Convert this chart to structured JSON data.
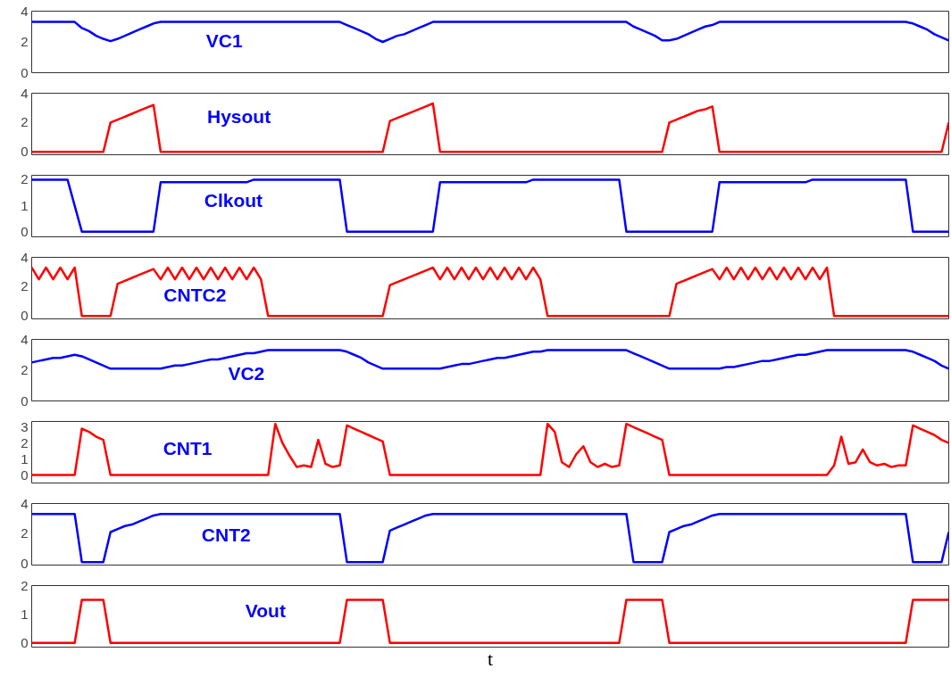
{
  "chart_data": [
    {
      "type": "line",
      "title": "VC1",
      "categories": [
        null,
        null,
        null,
        null,
        null,
        null,
        null,
        null,
        null,
        null,
        null,
        null,
        null,
        null,
        null,
        null,
        null,
        null,
        null,
        null,
        null,
        null,
        null,
        null,
        null,
        null,
        null,
        null,
        null,
        null,
        null,
        null,
        null,
        null,
        null,
        null,
        null,
        null,
        null,
        null,
        null,
        null,
        null,
        null,
        null,
        null,
        null,
        null,
        null,
        null,
        null,
        null,
        null,
        null,
        null,
        null,
        null,
        null,
        null,
        null,
        null,
        null,
        null,
        null,
        null,
        null,
        null,
        null,
        null,
        null,
        null,
        null,
        null,
        null,
        null,
        null,
        null,
        null,
        null,
        null,
        null,
        null,
        null,
        null,
        null,
        null,
        null,
        null,
        null,
        null,
        null,
        null,
        null,
        null,
        null,
        null,
        null,
        null,
        null,
        null,
        null,
        null,
        null,
        null,
        null,
        null,
        null,
        null,
        null,
        null,
        null,
        null,
        null,
        null,
        null,
        null,
        null,
        null,
        null,
        null,
        null,
        null,
        null,
        null,
        null,
        null,
        null,
        null,
        null
      ],
      "series": [
        {
          "color": "#0000ff",
          "values": [
            3.3,
            3.3,
            3.3,
            3.3,
            3.3,
            3.3,
            3.3,
            2.9,
            2.7,
            2.4,
            2.2,
            2.05,
            2.2,
            2.4,
            2.6,
            2.8,
            3.0,
            3.2,
            3.3,
            3.3,
            3.3,
            3.3,
            3.3,
            3.3,
            3.3,
            3.3,
            3.3,
            3.3,
            3.3,
            3.3,
            3.3,
            3.3,
            3.3,
            3.3,
            3.3,
            3.3,
            3.3,
            3.3,
            3.3,
            3.3,
            3.3,
            3.3,
            3.3,
            3.3,
            3.1,
            2.9,
            2.7,
            2.5,
            2.2,
            2.0,
            2.2,
            2.4,
            2.5,
            2.7,
            2.9,
            3.1,
            3.3,
            3.3,
            3.3,
            3.3,
            3.3,
            3.3,
            3.3,
            3.3,
            3.3,
            3.3,
            3.3,
            3.3,
            3.3,
            3.3,
            3.3,
            3.3,
            3.3,
            3.3,
            3.3,
            3.3,
            3.3,
            3.3,
            3.3,
            3.3,
            3.3,
            3.3,
            3.3,
            3.3,
            3.0,
            2.8,
            2.6,
            2.4,
            2.1,
            2.1,
            2.2,
            2.4,
            2.6,
            2.8,
            3.0,
            3.1,
            3.3,
            3.3,
            3.3,
            3.3,
            3.3,
            3.3,
            3.3,
            3.3,
            3.3,
            3.3,
            3.3,
            3.3,
            3.3,
            3.3,
            3.3,
            3.3,
            3.3,
            3.3,
            3.3,
            3.3,
            3.3,
            3.3,
            3.3,
            3.3,
            3.3,
            3.3,
            3.3,
            3.2,
            3.0,
            2.8,
            2.5,
            2.3,
            2.1
          ]
        }
      ],
      "ylim": [
        0,
        4
      ],
      "yticks": [
        0,
        2,
        4
      ],
      "tick_labels": "y"
    },
    {
      "type": "line",
      "title": "Hysout",
      "categories": [
        null,
        null,
        null,
        null,
        null,
        null,
        null,
        null,
        null,
        null,
        null,
        null,
        null,
        null,
        null,
        null,
        null,
        null,
        null,
        null,
        null,
        null,
        null,
        null,
        null,
        null,
        null,
        null,
        null,
        null,
        null,
        null,
        null,
        null,
        null,
        null,
        null,
        null,
        null,
        null,
        null,
        null,
        null,
        null,
        null,
        null,
        null,
        null,
        null,
        null,
        null,
        null,
        null,
        null,
        null,
        null,
        null,
        null,
        null,
        null,
        null,
        null,
        null,
        null,
        null,
        null,
        null,
        null,
        null,
        null,
        null,
        null,
        null,
        null,
        null,
        null,
        null,
        null,
        null,
        null,
        null,
        null,
        null,
        null,
        null,
        null,
        null,
        null,
        null,
        null,
        null,
        null,
        null,
        null,
        null,
        null,
        null,
        null,
        null,
        null,
        null,
        null,
        null,
        null,
        null,
        null,
        null,
        null,
        null,
        null,
        null,
        null,
        null,
        null,
        null,
        null,
        null,
        null,
        null,
        null,
        null,
        null,
        null,
        null,
        null,
        null,
        null,
        null,
        null
      ],
      "series": [
        {
          "color": "#ff0000",
          "values": [
            0,
            0,
            0,
            0,
            0,
            0,
            0,
            0,
            0,
            0,
            0,
            2.0,
            2.2,
            2.4,
            2.6,
            2.8,
            3.0,
            3.2,
            0,
            0,
            0,
            0,
            0,
            0,
            0,
            0,
            0,
            0,
            0,
            0,
            0,
            0,
            0,
            0,
            0,
            0,
            0,
            0,
            0,
            0,
            0,
            0,
            0,
            0,
            0,
            0,
            0,
            0,
            0,
            0,
            2.1,
            2.3,
            2.5,
            2.7,
            2.9,
            3.1,
            3.3,
            0,
            0,
            0,
            0,
            0,
            0,
            0,
            0,
            0,
            0,
            0,
            0,
            0,
            0,
            0,
            0,
            0,
            0,
            0,
            0,
            0,
            0,
            0,
            0,
            0,
            0,
            0,
            0,
            0,
            0,
            0,
            0,
            2.0,
            2.2,
            2.4,
            2.6,
            2.8,
            2.9,
            3.1,
            0,
            0,
            0,
            0,
            0,
            0,
            0,
            0,
            0,
            0,
            0,
            0,
            0,
            0,
            0,
            0,
            0,
            0,
            0,
            0,
            0,
            0,
            0,
            0,
            0,
            0,
            0,
            0,
            0,
            0,
            0,
            0,
            2.0
          ]
        }
      ],
      "ylim": [
        -0.2,
        4
      ],
      "yticks": [
        0,
        2,
        4
      ],
      "tick_labels": "y"
    },
    {
      "type": "line",
      "title": "Clkout",
      "categories": [
        null,
        null,
        null,
        null,
        null,
        null,
        null,
        null,
        null,
        null,
        null,
        null,
        null,
        null,
        null,
        null,
        null,
        null,
        null,
        null,
        null,
        null,
        null,
        null,
        null,
        null,
        null,
        null,
        null,
        null,
        null,
        null,
        null,
        null,
        null,
        null,
        null,
        null,
        null,
        null,
        null,
        null,
        null,
        null,
        null,
        null,
        null,
        null,
        null,
        null,
        null,
        null,
        null,
        null,
        null,
        null,
        null,
        null,
        null,
        null,
        null,
        null,
        null,
        null,
        null,
        null,
        null,
        null,
        null,
        null,
        null,
        null,
        null,
        null,
        null,
        null,
        null,
        null,
        null,
        null,
        null,
        null,
        null,
        null,
        null,
        null,
        null,
        null,
        null,
        null,
        null,
        null,
        null,
        null,
        null,
        null,
        null,
        null,
        null,
        null,
        null,
        null,
        null,
        null,
        null,
        null,
        null,
        null,
        null,
        null,
        null,
        null,
        null,
        null,
        null,
        null,
        null,
        null,
        null,
        null,
        null,
        null,
        null,
        null,
        null,
        null,
        null,
        null,
        null
      ],
      "series": [
        {
          "color": "#0000ff",
          "values": [
            2,
            2,
            2,
            2,
            2,
            2,
            1,
            0,
            0,
            0,
            0,
            0,
            0,
            0,
            0,
            0,
            0,
            0,
            1.9,
            1.9,
            1.9,
            1.9,
            1.9,
            1.9,
            1.9,
            1.9,
            1.9,
            1.9,
            1.9,
            1.9,
            1.9,
            2.0,
            2.0,
            2.0,
            2.0,
            2.0,
            2.0,
            2.0,
            2.0,
            2.0,
            2.0,
            2.0,
            2.0,
            2.0,
            0,
            0,
            0,
            0,
            0,
            0,
            0,
            0,
            0,
            0,
            0,
            0,
            0,
            1.9,
            1.9,
            1.9,
            1.9,
            1.9,
            1.9,
            1.9,
            1.9,
            1.9,
            1.9,
            1.9,
            1.9,
            1.9,
            2.0,
            2.0,
            2.0,
            2.0,
            2.0,
            2.0,
            2.0,
            2.0,
            2.0,
            2.0,
            2.0,
            2.0,
            2.0,
            0,
            0,
            0,
            0,
            0,
            0,
            0,
            0,
            0,
            0,
            0,
            0,
            0,
            1.9,
            1.9,
            1.9,
            1.9,
            1.9,
            1.9,
            1.9,
            1.9,
            1.9,
            1.9,
            1.9,
            1.9,
            1.9,
            2.0,
            2.0,
            2.0,
            2.0,
            2.0,
            2.0,
            2.0,
            2.0,
            2.0,
            2.0,
            2.0,
            2.0,
            2.0,
            2.0,
            0,
            0,
            0,
            0,
            0,
            0
          ]
        }
      ],
      "ylim": [
        -0.2,
        2.17
      ],
      "yticks": [
        0,
        1,
        2
      ],
      "tick_labels": "y"
    },
    {
      "type": "line",
      "title": "CNTC2",
      "categories": [
        null,
        null,
        null,
        null,
        null,
        null,
        null,
        null,
        null,
        null,
        null,
        null,
        null,
        null,
        null,
        null,
        null,
        null,
        null,
        null,
        null,
        null,
        null,
        null,
        null,
        null,
        null,
        null,
        null,
        null,
        null,
        null,
        null,
        null,
        null,
        null,
        null,
        null,
        null,
        null,
        null,
        null,
        null,
        null,
        null,
        null,
        null,
        null,
        null,
        null,
        null,
        null,
        null,
        null,
        null,
        null,
        null,
        null,
        null,
        null,
        null,
        null,
        null,
        null,
        null,
        null,
        null,
        null,
        null,
        null,
        null,
        null,
        null,
        null,
        null,
        null,
        null,
        null,
        null,
        null,
        null,
        null,
        null,
        null,
        null,
        null,
        null,
        null,
        null,
        null,
        null,
        null,
        null,
        null,
        null,
        null,
        null,
        null,
        null,
        null,
        null,
        null,
        null,
        null,
        null,
        null,
        null,
        null,
        null,
        null,
        null,
        null,
        null,
        null,
        null,
        null,
        null,
        null,
        null,
        null,
        null,
        null,
        null,
        null,
        null,
        null,
        null,
        null,
        null
      ],
      "series": [
        {
          "color": "#ff0000",
          "values": [
            3.3,
            2.5,
            3.3,
            2.5,
            3.3,
            2.5,
            3.3,
            0,
            0,
            0,
            0,
            0,
            2.2,
            2.4,
            2.6,
            2.8,
            3.0,
            3.2,
            2.5,
            3.3,
            2.5,
            3.3,
            2.5,
            3.3,
            2.5,
            3.3,
            2.5,
            3.3,
            2.5,
            3.3,
            2.5,
            3.3,
            2.5,
            0,
            0,
            0,
            0,
            0,
            0,
            0,
            0,
            0,
            0,
            0,
            0,
            0,
            0,
            0,
            0,
            0,
            2.1,
            2.3,
            2.5,
            2.7,
            2.9,
            3.1,
            3.3,
            2.5,
            3.3,
            2.5,
            3.3,
            2.5,
            3.3,
            2.5,
            3.3,
            2.5,
            3.3,
            2.5,
            3.3,
            2.5,
            3.3,
            2.5,
            0,
            0,
            0,
            0,
            0,
            0,
            0,
            0,
            0,
            0,
            0,
            0,
            0,
            0,
            0,
            0,
            0,
            0,
            2.2,
            2.4,
            2.6,
            2.8,
            3.0,
            3.2,
            2.5,
            3.3,
            2.5,
            3.3,
            2.5,
            3.3,
            2.5,
            3.3,
            2.5,
            3.3,
            2.5,
            3.3,
            2.5,
            3.3,
            2.5,
            3.3,
            0,
            0,
            0,
            0,
            0,
            0,
            0,
            0,
            0,
            0,
            0,
            0,
            0,
            0,
            0,
            0,
            0
          ]
        }
      ],
      "ylim": [
        -0.2,
        4
      ],
      "yticks": [
        0,
        2,
        4
      ],
      "tick_labels": "y"
    },
    {
      "type": "line",
      "title": "VC2",
      "categories": [
        null,
        null,
        null,
        null,
        null,
        null,
        null,
        null,
        null,
        null,
        null,
        null,
        null,
        null,
        null,
        null,
        null,
        null,
        null,
        null,
        null,
        null,
        null,
        null,
        null,
        null,
        null,
        null,
        null,
        null,
        null,
        null,
        null,
        null,
        null,
        null,
        null,
        null,
        null,
        null,
        null,
        null,
        null,
        null,
        null,
        null,
        null,
        null,
        null,
        null,
        null,
        null,
        null,
        null,
        null,
        null,
        null,
        null,
        null,
        null,
        null,
        null,
        null,
        null,
        null,
        null,
        null,
        null,
        null,
        null,
        null,
        null,
        null,
        null,
        null,
        null,
        null,
        null,
        null,
        null,
        null,
        null,
        null,
        null,
        null,
        null,
        null,
        null,
        null,
        null,
        null,
        null,
        null,
        null,
        null,
        null,
        null,
        null,
        null,
        null,
        null,
        null,
        null,
        null,
        null,
        null,
        null,
        null,
        null,
        null,
        null,
        null,
        null,
        null,
        null,
        null,
        null,
        null,
        null,
        null,
        null,
        null,
        null,
        null,
        null,
        null,
        null,
        null,
        null
      ],
      "series": [
        {
          "color": "#0000ff",
          "values": [
            2.5,
            2.6,
            2.7,
            2.8,
            2.8,
            2.9,
            3.0,
            2.9,
            2.7,
            2.5,
            2.3,
            2.1,
            2.1,
            2.1,
            2.1,
            2.1,
            2.1,
            2.1,
            2.1,
            2.2,
            2.3,
            2.3,
            2.4,
            2.5,
            2.6,
            2.7,
            2.7,
            2.8,
            2.9,
            3.0,
            3.1,
            3.1,
            3.2,
            3.3,
            3.3,
            3.3,
            3.3,
            3.3,
            3.3,
            3.3,
            3.3,
            3.3,
            3.3,
            3.3,
            3.2,
            3.0,
            2.8,
            2.5,
            2.3,
            2.1,
            2.1,
            2.1,
            2.1,
            2.1,
            2.1,
            2.1,
            2.1,
            2.1,
            2.2,
            2.3,
            2.4,
            2.4,
            2.5,
            2.6,
            2.7,
            2.8,
            2.8,
            2.9,
            3.0,
            3.1,
            3.2,
            3.2,
            3.3,
            3.3,
            3.3,
            3.3,
            3.3,
            3.3,
            3.3,
            3.3,
            3.3,
            3.3,
            3.3,
            3.3,
            3.1,
            2.9,
            2.7,
            2.5,
            2.3,
            2.1,
            2.1,
            2.1,
            2.1,
            2.1,
            2.1,
            2.1,
            2.1,
            2.2,
            2.2,
            2.3,
            2.4,
            2.5,
            2.6,
            2.6,
            2.7,
            2.8,
            2.9,
            3.0,
            3.0,
            3.1,
            3.2,
            3.3,
            3.3,
            3.3,
            3.3,
            3.3,
            3.3,
            3.3,
            3.3,
            3.3,
            3.3,
            3.3,
            3.3,
            3.2,
            3.0,
            2.8,
            2.6,
            2.3,
            2.1
          ]
        }
      ],
      "ylim": [
        0,
        4
      ],
      "yticks": [
        0,
        2,
        4
      ],
      "tick_labels": "y"
    },
    {
      "type": "line",
      "title": "CNT1",
      "categories": [
        null,
        null,
        null,
        null,
        null,
        null,
        null,
        null,
        null,
        null,
        null,
        null,
        null,
        null,
        null,
        null,
        null,
        null,
        null,
        null,
        null,
        null,
        null,
        null,
        null,
        null,
        null,
        null,
        null,
        null,
        null,
        null,
        null,
        null,
        null,
        null,
        null,
        null,
        null,
        null,
        null,
        null,
        null,
        null,
        null,
        null,
        null,
        null,
        null,
        null,
        null,
        null,
        null,
        null,
        null,
        null,
        null,
        null,
        null,
        null,
        null,
        null,
        null,
        null,
        null,
        null,
        null,
        null,
        null,
        null,
        null,
        null,
        null,
        null,
        null,
        null,
        null,
        null,
        null,
        null,
        null,
        null,
        null,
        null,
        null,
        null,
        null,
        null,
        null,
        null,
        null,
        null,
        null,
        null,
        null,
        null,
        null,
        null,
        null,
        null,
        null,
        null,
        null,
        null,
        null,
        null,
        null,
        null,
        null,
        null,
        null,
        null,
        null,
        null,
        null,
        null,
        null,
        null,
        null,
        null,
        null,
        null,
        null,
        null,
        null,
        null,
        null,
        null,
        null
      ],
      "series": [
        {
          "color": "#ff0000",
          "values": [
            0,
            0,
            0,
            0,
            0,
            0,
            0,
            2.9,
            2.7,
            2.4,
            2.2,
            0,
            0,
            0,
            0,
            0,
            0,
            0,
            0,
            0,
            0,
            0,
            0,
            0,
            0,
            0,
            0,
            0,
            0,
            0,
            0,
            0,
            0,
            0,
            3.2,
            2.0,
            1.2,
            0.5,
            0.6,
            0.5,
            2.2,
            0.7,
            0.5,
            0.6,
            3.1,
            2.9,
            2.7,
            2.5,
            2.3,
            2.1,
            0,
            0,
            0,
            0,
            0,
            0,
            0,
            0,
            0,
            0,
            0,
            0,
            0,
            0,
            0,
            0,
            0,
            0,
            0,
            0,
            0,
            0,
            3.2,
            2.7,
            0.8,
            0.5,
            1.3,
            1.8,
            0.8,
            0.5,
            0.7,
            0.5,
            0.6,
            3.2,
            3.0,
            2.8,
            2.6,
            2.4,
            2.2,
            0,
            0,
            0,
            0,
            0,
            0,
            0,
            0,
            0,
            0,
            0,
            0,
            0,
            0,
            0,
            0,
            0,
            0,
            0,
            0,
            0,
            0,
            0,
            0.6,
            2.4,
            0.7,
            0.8,
            1.6,
            0.8,
            0.6,
            0.7,
            0.5,
            0.6,
            0.6,
            3.1,
            2.9,
            2.7,
            2.5,
            2.2,
            2.0
          ]
        }
      ],
      "ylim": [
        -0.5,
        3.35
      ],
      "yticks": [
        0,
        1,
        2,
        3
      ],
      "tick_labels": "y"
    },
    {
      "type": "line",
      "title": "CNT2",
      "categories": [
        null,
        null,
        null,
        null,
        null,
        null,
        null,
        null,
        null,
        null,
        null,
        null,
        null,
        null,
        null,
        null,
        null,
        null,
        null,
        null,
        null,
        null,
        null,
        null,
        null,
        null,
        null,
        null,
        null,
        null,
        null,
        null,
        null,
        null,
        null,
        null,
        null,
        null,
        null,
        null,
        null,
        null,
        null,
        null,
        null,
        null,
        null,
        null,
        null,
        null,
        null,
        null,
        null,
        null,
        null,
        null,
        null,
        null,
        null,
        null,
        null,
        null,
        null,
        null,
        null,
        null,
        null,
        null,
        null,
        null,
        null,
        null,
        null,
        null,
        null,
        null,
        null,
        null,
        null,
        null,
        null,
        null,
        null,
        null,
        null,
        null,
        null,
        null,
        null,
        null,
        null,
        null,
        null,
        null,
        null,
        null,
        null,
        null,
        null,
        null,
        null,
        null,
        null,
        null,
        null,
        null,
        null,
        null,
        null,
        null,
        null,
        null,
        null,
        null,
        null,
        null,
        null,
        null,
        null,
        null,
        null,
        null,
        null,
        null,
        null,
        null,
        null,
        null,
        null
      ],
      "series": [
        {
          "color": "#0000ff",
          "values": [
            3.3,
            3.3,
            3.3,
            3.3,
            3.3,
            3.3,
            3.3,
            0.1,
            0.1,
            0.1,
            0.1,
            2.1,
            2.3,
            2.5,
            2.6,
            2.8,
            3.0,
            3.2,
            3.3,
            3.3,
            3.3,
            3.3,
            3.3,
            3.3,
            3.3,
            3.3,
            3.3,
            3.3,
            3.3,
            3.3,
            3.3,
            3.3,
            3.3,
            3.3,
            3.3,
            3.3,
            3.3,
            3.3,
            3.3,
            3.3,
            3.3,
            3.3,
            3.3,
            3.3,
            0.1,
            0.1,
            0.1,
            0.1,
            0.1,
            0.1,
            2.2,
            2.4,
            2.6,
            2.8,
            3.0,
            3.2,
            3.3,
            3.3,
            3.3,
            3.3,
            3.3,
            3.3,
            3.3,
            3.3,
            3.3,
            3.3,
            3.3,
            3.3,
            3.3,
            3.3,
            3.3,
            3.3,
            3.3,
            3.3,
            3.3,
            3.3,
            3.3,
            3.3,
            3.3,
            3.3,
            3.3,
            3.3,
            3.3,
            3.3,
            0.1,
            0.1,
            0.1,
            0.1,
            0.1,
            2.1,
            2.3,
            2.5,
            2.6,
            2.8,
            3.0,
            3.2,
            3.3,
            3.3,
            3.3,
            3.3,
            3.3,
            3.3,
            3.3,
            3.3,
            3.3,
            3.3,
            3.3,
            3.3,
            3.3,
            3.3,
            3.3,
            3.3,
            3.3,
            3.3,
            3.3,
            3.3,
            3.3,
            3.3,
            3.3,
            3.3,
            3.3,
            3.3,
            3.3,
            0.1,
            0.1,
            0.1,
            0.1,
            0.1,
            2.1
          ]
        }
      ],
      "ylim": [
        -0.1,
        4
      ],
      "yticks": [
        0,
        2,
        4
      ],
      "tick_labels": "y"
    },
    {
      "type": "line",
      "title": "Vout",
      "xlabel": "t",
      "categories": [
        null,
        null,
        null,
        null,
        null,
        null,
        null,
        null,
        null,
        null,
        null,
        null,
        null,
        null,
        null,
        null,
        null,
        null,
        null,
        null,
        null,
        null,
        null,
        null,
        null,
        null,
        null,
        null,
        null,
        null,
        null,
        null,
        null,
        null,
        null,
        null,
        null,
        null,
        null,
        null,
        null,
        null,
        null,
        null,
        null,
        null,
        null,
        null,
        null,
        null,
        null,
        null,
        null,
        null,
        null,
        null,
        null,
        null,
        null,
        null,
        null,
        null,
        null,
        null,
        null,
        null,
        null,
        null,
        null,
        null,
        null,
        null,
        null,
        null,
        null,
        null,
        null,
        null,
        null,
        null,
        null,
        null,
        null,
        null,
        null,
        null,
        null,
        null,
        null,
        null,
        null,
        null,
        null,
        null,
        null,
        null,
        null,
        null,
        null,
        null,
        null,
        null,
        null,
        null,
        null,
        null,
        null,
        null,
        null,
        null,
        null,
        null,
        null,
        null,
        null,
        null,
        null,
        null,
        null,
        null,
        null,
        null,
        null,
        null,
        null,
        null,
        null,
        null,
        null
      ],
      "series": [
        {
          "color": "#ff0000",
          "values": [
            0,
            0,
            0,
            0,
            0,
            0,
            0,
            1.5,
            1.5,
            1.5,
            1.5,
            0,
            0,
            0,
            0,
            0,
            0,
            0,
            0,
            0,
            0,
            0,
            0,
            0,
            0,
            0,
            0,
            0,
            0,
            0,
            0,
            0,
            0,
            0,
            0,
            0,
            0,
            0,
            0,
            0,
            0,
            0,
            0,
            0,
            1.5,
            1.5,
            1.5,
            1.5,
            1.5,
            1.5,
            0,
            0,
            0,
            0,
            0,
            0,
            0,
            0,
            0,
            0,
            0,
            0,
            0,
            0,
            0,
            0,
            0,
            0,
            0,
            0,
            0,
            0,
            0,
            0,
            0,
            0,
            0,
            0,
            0,
            0,
            0,
            0,
            0,
            1.5,
            1.5,
            1.5,
            1.5,
            1.5,
            1.5,
            0,
            0,
            0,
            0,
            0,
            0,
            0,
            0,
            0,
            0,
            0,
            0,
            0,
            0,
            0,
            0,
            0,
            0,
            0,
            0,
            0,
            0,
            0,
            0,
            0,
            0,
            0,
            0,
            0,
            0,
            0,
            0,
            0,
            0,
            1.5,
            1.5,
            1.5,
            1.5,
            1.5,
            1.5
          ]
        }
      ],
      "ylim": [
        -0.15,
        2
      ],
      "yticks": [
        0,
        1,
        2
      ],
      "tick_labels": "y"
    }
  ]
}
